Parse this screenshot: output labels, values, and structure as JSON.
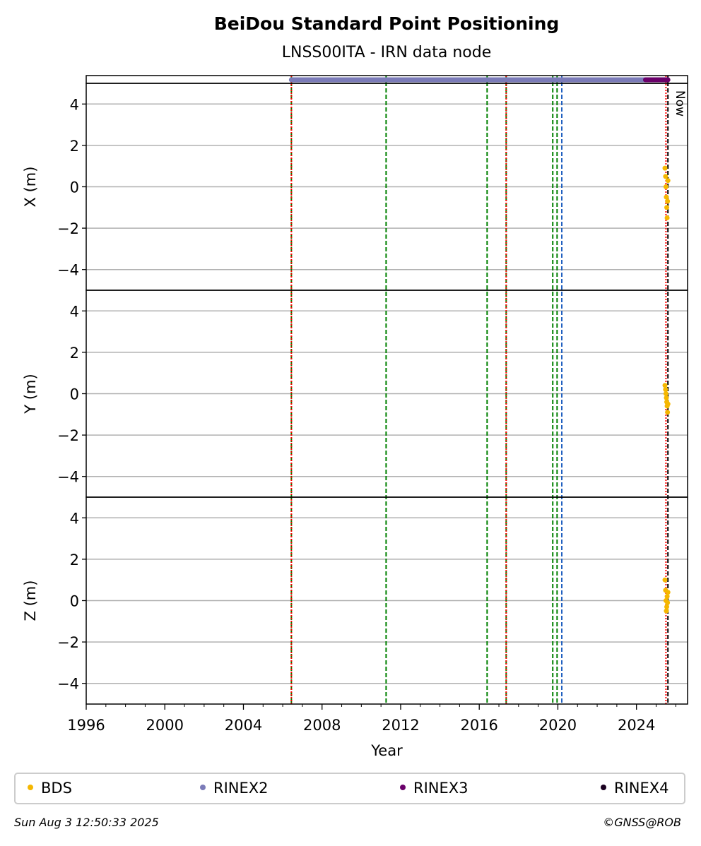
{
  "chart_data": {
    "type": "scatter",
    "title": "BeiDou Standard Point Positioning",
    "subtitle": "LNSS00ITA - IRN data node",
    "xlabel": "Year",
    "xlim": [
      1996,
      2026.6
    ],
    "xticks": [
      1996,
      2000,
      2004,
      2008,
      2012,
      2016,
      2020,
      2024
    ],
    "xminorticks": [
      1997,
      1998,
      1999,
      2001,
      2002,
      2003,
      2005,
      2006,
      2007,
      2009,
      2010,
      2011,
      2013,
      2014,
      2015,
      2017,
      2018,
      2019,
      2021,
      2022,
      2023,
      2025,
      2026
    ],
    "ylim": [
      -5,
      5
    ],
    "yticks": [
      {
        "value": -4,
        "label": "−4"
      },
      {
        "value": -2,
        "label": "−2"
      },
      0,
      2,
      4
    ],
    "grid": true,
    "panels": [
      {
        "ylabel": "X (m)"
      },
      {
        "ylabel": "Y (m)"
      },
      {
        "ylabel": "Z (m)"
      }
    ],
    "series": [
      {
        "name": "BDS",
        "color": "#f5b700",
        "x": [
          2025.45,
          2025.48,
          2025.5,
          2025.52,
          2025.54,
          2025.56,
          2025.58,
          2025.6
        ],
        "values": [
          [
            0.9,
            0.5,
            0,
            -0.5,
            -1,
            -1.5,
            -0.7,
            0.3
          ],
          [
            0.4,
            0.2,
            0,
            -0.2,
            -0.4,
            -0.6,
            -0.9,
            -0.5
          ],
          [
            1,
            0.5,
            0,
            -0.5,
            -0.3,
            0.2,
            -0.1,
            0.4
          ]
        ]
      },
      {
        "name": "RINEX2",
        "color": "#7b7bb8",
        "span": [
          2006.44,
          2024.46
        ]
      },
      {
        "name": "RINEX3",
        "color": "#6a006a",
        "span": [
          2024.46,
          2025.6
        ]
      },
      {
        "name": "RINEX4",
        "color": "#1a0020"
      }
    ],
    "events": [
      {
        "x": 2006.44,
        "color": "#008000",
        "style": "dashed"
      },
      {
        "x": 2011.26,
        "color": "#008000",
        "style": "dashed"
      },
      {
        "x": 2016.4,
        "color": "#008000",
        "style": "dashed"
      },
      {
        "x": 2017.37,
        "color": "#008000",
        "style": "dashed"
      },
      {
        "x": 2019.74,
        "color": "#008000",
        "style": "dashed"
      },
      {
        "x": 2019.96,
        "color": "#008000",
        "style": "dashed"
      },
      {
        "x": 2020.2,
        "color": "#1f5fbf",
        "style": "dashed"
      },
      {
        "x": 2006.44,
        "color": "#ff0000",
        "style": "dotted"
      },
      {
        "x": 2017.37,
        "color": "#ff0000",
        "style": "dotted"
      },
      {
        "x": 2025.5,
        "color": "#ff0000",
        "style": "dotted"
      },
      {
        "x": 2025.6,
        "color": "#000000",
        "style": "dashed",
        "label": "Now"
      }
    ],
    "footnote_left": "Sun Aug  3 12:50:33 2025",
    "footnote_right": "©GNSS@ROB"
  }
}
